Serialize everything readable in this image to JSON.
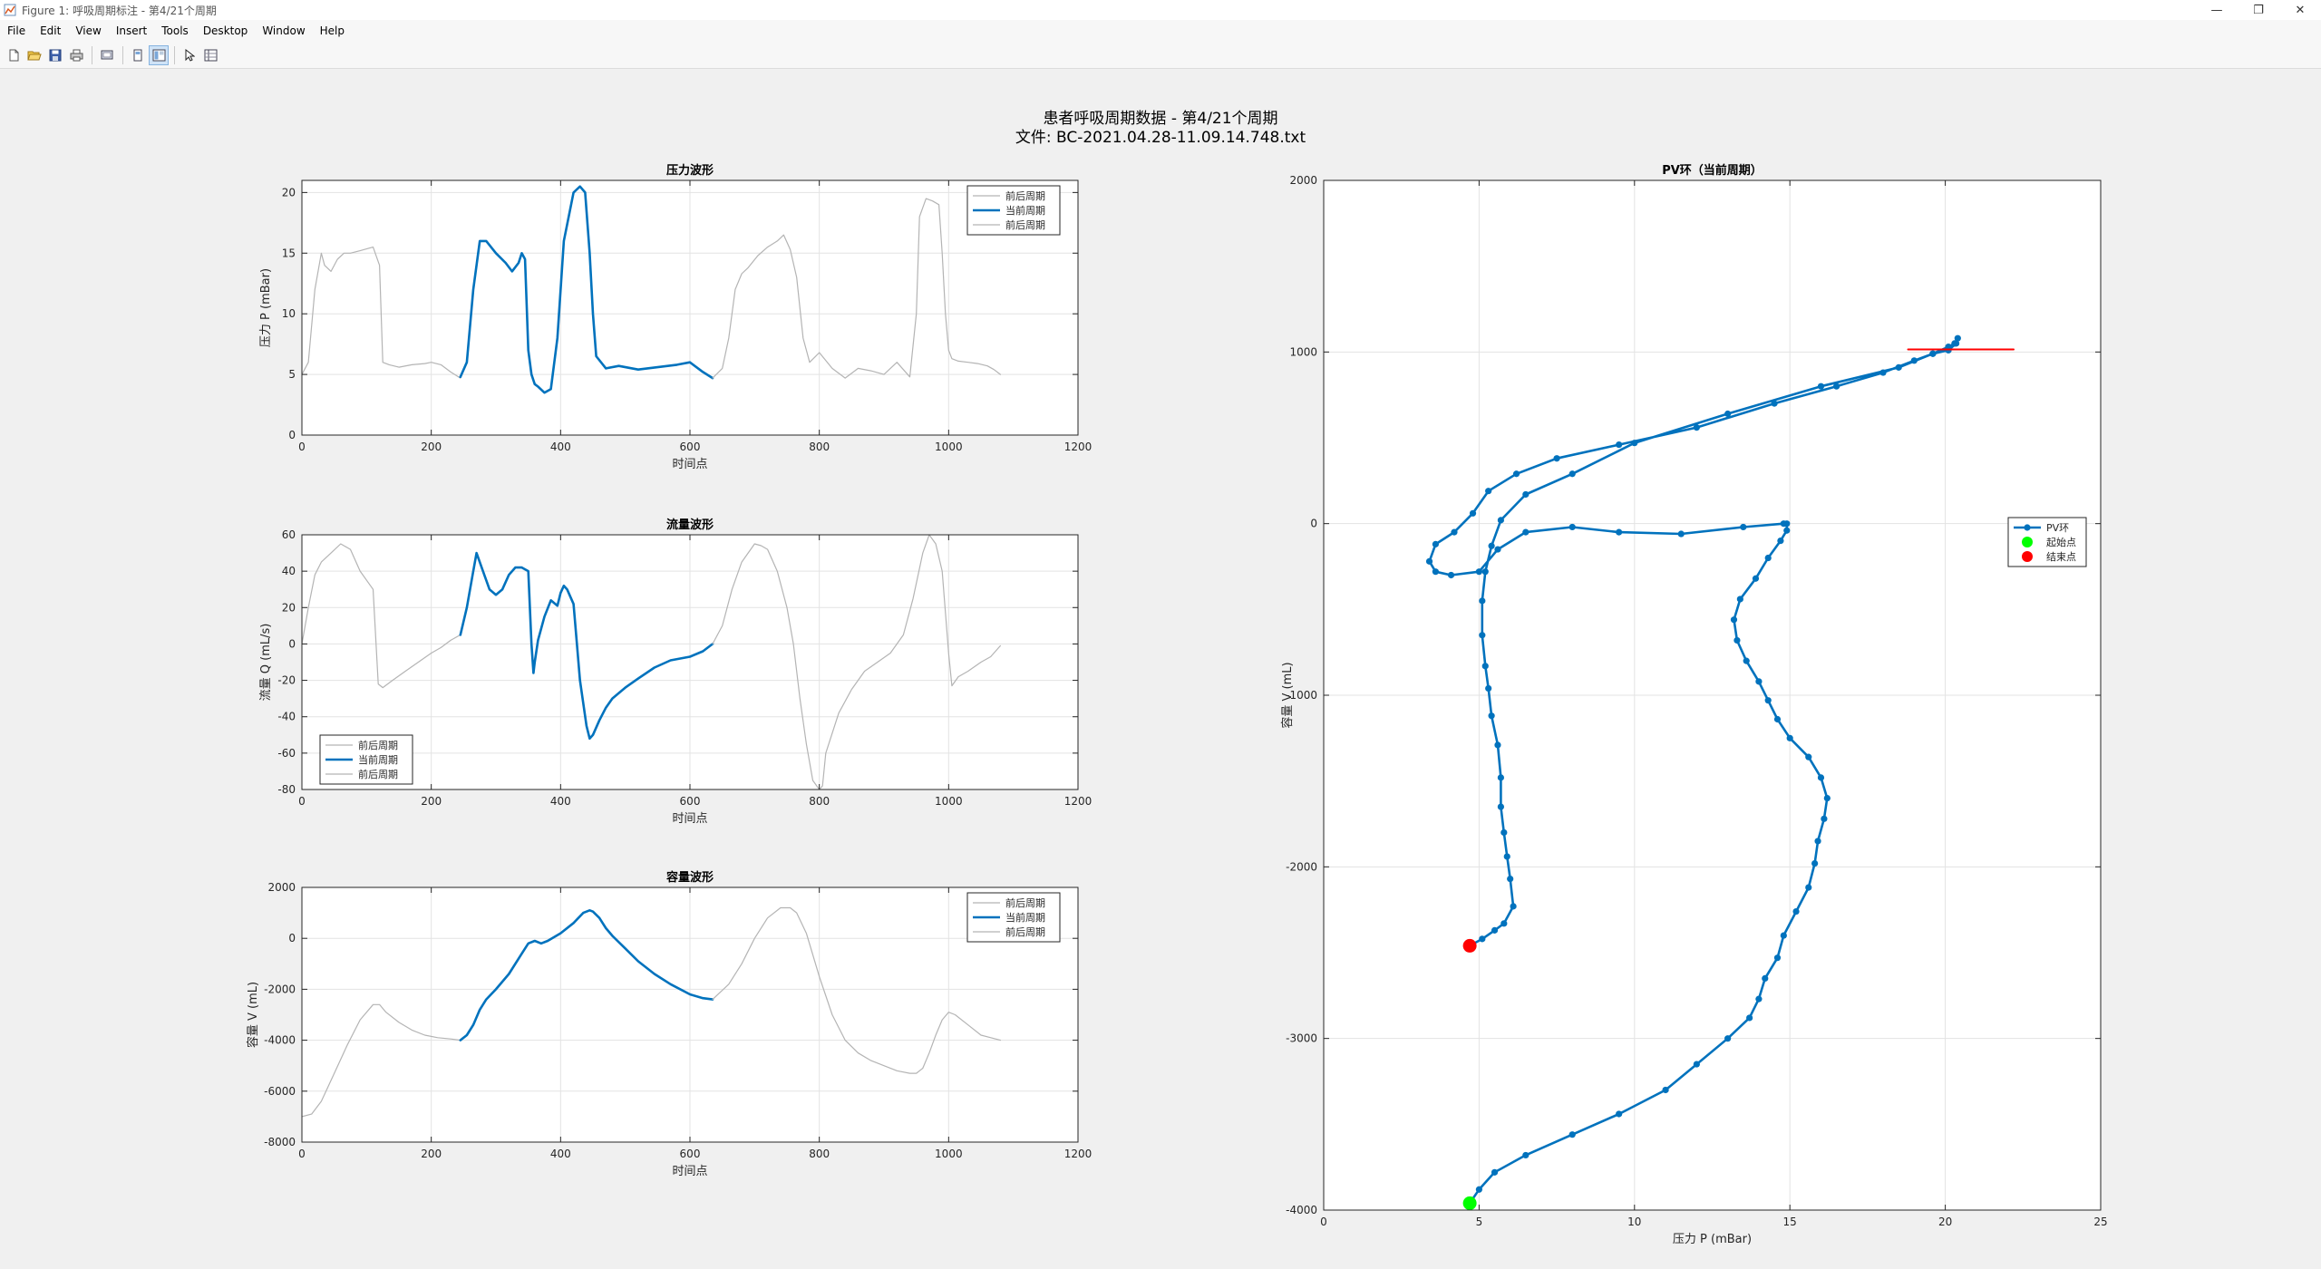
{
  "window": {
    "title": "Figure 1: 呼吸周期标注 - 第4/21个周期",
    "controls": [
      "—",
      "❐",
      "✕"
    ]
  },
  "menubar": [
    "File",
    "Edit",
    "View",
    "Insert",
    "Tools",
    "Desktop",
    "Window",
    "Help"
  ],
  "toolbar": [
    "new-figure-icon",
    "open-file-icon",
    "save-icon",
    "print-icon",
    "print-preview-icon",
    "hide-plot-tools-icon",
    "show-plot-tools-icon",
    "edit-plot-arrow-icon",
    "property-inspector-icon"
  ],
  "figure": {
    "title_line1": "患者呼吸周期数据 - 第4/21个周期",
    "title_line2": "文件: BC-2021.04.28-11.09.14.748.txt"
  },
  "colors": {
    "context": "#b4b4b4",
    "current": "#0072bd",
    "start": "#00ff00",
    "end": "#ff0000",
    "marker_line": "#ff0000"
  },
  "chart_data": [
    {
      "id": "pressure",
      "type": "line",
      "title": "压力波形",
      "xlabel": "时间点",
      "ylabel": "压力 P (mBar)",
      "xlim": [
        0,
        1200
      ],
      "ylim": [
        0,
        21
      ],
      "xticks": [
        0,
        200,
        400,
        600,
        800,
        1000,
        1200
      ],
      "yticks": [
        0,
        5,
        10,
        15,
        20
      ],
      "grid": true,
      "legend_location": "top-right",
      "series": [
        {
          "name": "前后周期",
          "role": "context",
          "x": [
            0,
            10,
            20,
            30,
            35,
            45,
            55,
            65,
            75,
            90,
            110,
            120,
            125,
            135,
            150,
            170,
            190,
            200,
            215,
            230,
            245
          ],
          "y": [
            5,
            6,
            12,
            15,
            14,
            13.5,
            14.5,
            15,
            15,
            15.2,
            15.5,
            14,
            6,
            5.8,
            5.6,
            5.8,
            5.9,
            6,
            5.8,
            5.2,
            4.7
          ]
        },
        {
          "name": "当前周期",
          "role": "current",
          "x": [
            245,
            255,
            265,
            275,
            285,
            300,
            315,
            325,
            335,
            340,
            345,
            350,
            355,
            360,
            365,
            375,
            385,
            395,
            405,
            420,
            430,
            438,
            445,
            450,
            455,
            470,
            490,
            520,
            550,
            580,
            600,
            620,
            635
          ],
          "y": [
            4.8,
            6,
            12,
            16,
            16,
            15,
            14.2,
            13.5,
            14.2,
            15,
            14.5,
            7,
            5,
            4.2,
            4,
            3.5,
            3.8,
            8,
            16,
            20,
            20.5,
            20,
            15,
            10,
            6.5,
            5.5,
            5.7,
            5.4,
            5.6,
            5.8,
            6,
            5.2,
            4.7
          ]
        },
        {
          "name": "前后周期",
          "role": "context",
          "x": [
            635,
            650,
            660,
            670,
            680,
            690,
            705,
            720,
            735,
            745,
            755,
            765,
            775,
            785,
            800,
            820,
            840,
            860,
            880,
            900,
            920,
            940,
            950,
            955,
            965,
            975,
            985,
            990,
            995,
            1000,
            1005,
            1015,
            1030,
            1045,
            1060,
            1070,
            1080
          ],
          "y": [
            4.7,
            5.5,
            8,
            12,
            13.3,
            13.8,
            14.8,
            15.5,
            16,
            16.5,
            15.3,
            13,
            8,
            6,
            6.8,
            5.5,
            4.7,
            5.5,
            5.3,
            5,
            6,
            4.8,
            10,
            18,
            19.5,
            19.3,
            19,
            15,
            10,
            7,
            6.3,
            6.1,
            6,
            5.9,
            5.7,
            5.4,
            5
          ]
        }
      ]
    },
    {
      "id": "flow",
      "type": "line",
      "title": "流量波形",
      "xlabel": "时间点",
      "ylabel": "流量 Q (mL/s)",
      "xlim": [
        0,
        1200
      ],
      "ylim": [
        -80,
        60
      ],
      "xticks": [
        0,
        200,
        400,
        600,
        800,
        1000,
        1200
      ],
      "yticks": [
        -80,
        -60,
        -40,
        -20,
        0,
        20,
        40,
        60
      ],
      "grid": true,
      "legend_location": "bottom-left",
      "series": [
        {
          "name": "前后周期",
          "role": "context",
          "x": [
            0,
            10,
            20,
            30,
            45,
            60,
            75,
            90,
            110,
            118,
            125,
            140,
            160,
            180,
            200,
            215,
            230,
            245
          ],
          "y": [
            0,
            20,
            38,
            45,
            50,
            55,
            52,
            40,
            30,
            -22,
            -24,
            -20,
            -15,
            -10,
            -5,
            -2,
            2,
            5
          ]
        },
        {
          "name": "当前周期",
          "role": "current",
          "x": [
            245,
            255,
            265,
            270,
            280,
            290,
            300,
            310,
            320,
            330,
            340,
            350,
            355,
            358,
            360,
            365,
            375,
            385,
            395,
            400,
            405,
            410,
            420,
            430,
            440,
            445,
            450,
            460,
            470,
            480,
            500,
            520,
            545,
            570,
            600,
            620,
            635
          ],
          "y": [
            5,
            20,
            40,
            50,
            40,
            30,
            27,
            30,
            38,
            42,
            42,
            40,
            0,
            -16,
            -10,
            2,
            15,
            24,
            21,
            28,
            32,
            30,
            22,
            -20,
            -45,
            -52,
            -50,
            -42,
            -35,
            -30,
            -24,
            -19,
            -13,
            -9,
            -7,
            -4,
            0
          ]
        },
        {
          "name": "前后周期",
          "role": "context",
          "x": [
            635,
            650,
            665,
            680,
            700,
            710,
            720,
            735,
            750,
            760,
            770,
            780,
            790,
            800,
            805,
            810,
            830,
            850,
            870,
            890,
            910,
            930,
            945,
            960,
            970,
            980,
            990,
            1000,
            1005,
            1015,
            1030,
            1050,
            1065,
            1080
          ],
          "y": [
            0,
            10,
            30,
            45,
            55,
            54,
            52,
            40,
            20,
            0,
            -30,
            -55,
            -75,
            -80,
            -78,
            -60,
            -38,
            -25,
            -15,
            -10,
            -5,
            5,
            25,
            50,
            60,
            55,
            40,
            -5,
            -23,
            -18,
            -15,
            -10,
            -7,
            -1
          ]
        }
      ]
    },
    {
      "id": "volume",
      "type": "line",
      "title": "容量波形",
      "xlabel": "时间点",
      "ylabel": "容量 V (mL)",
      "xlim": [
        0,
        1200
      ],
      "ylim": [
        -8000,
        2000
      ],
      "xticks": [
        0,
        200,
        400,
        600,
        800,
        1000,
        1200
      ],
      "yticks": [
        -8000,
        -6000,
        -4000,
        -2000,
        0,
        2000
      ],
      "grid": true,
      "legend_location": "top-right",
      "series": [
        {
          "name": "前后周期",
          "role": "context",
          "x": [
            0,
            15,
            30,
            50,
            70,
            90,
            110,
            120,
            130,
            150,
            170,
            190,
            210,
            230,
            245
          ],
          "y": [
            -7000,
            -6900,
            -6400,
            -5300,
            -4200,
            -3200,
            -2600,
            -2600,
            -2900,
            -3300,
            -3600,
            -3800,
            -3900,
            -3950,
            -4000
          ]
        },
        {
          "name": "当前周期",
          "role": "current",
          "x": [
            245,
            255,
            265,
            275,
            285,
            300,
            320,
            340,
            350,
            360,
            370,
            380,
            400,
            420,
            435,
            445,
            450,
            460,
            470,
            480,
            500,
            520,
            545,
            570,
            600,
            620,
            635
          ],
          "y": [
            -4000,
            -3800,
            -3400,
            -2800,
            -2400,
            -2000,
            -1400,
            -600,
            -200,
            -100,
            -200,
            -100,
            200,
            600,
            1000,
            1100,
            1050,
            800,
            400,
            100,
            -400,
            -900,
            -1400,
            -1800,
            -2200,
            -2350,
            -2400
          ]
        },
        {
          "name": "前后周期",
          "role": "context",
          "x": [
            635,
            660,
            680,
            700,
            720,
            740,
            755,
            765,
            780,
            800,
            820,
            840,
            860,
            880,
            900,
            920,
            940,
            950,
            960,
            970,
            980,
            990,
            1000,
            1010,
            1030,
            1050,
            1080
          ],
          "y": [
            -2400,
            -1800,
            -1000,
            0,
            800,
            1200,
            1200,
            1000,
            200,
            -1500,
            -3000,
            -4000,
            -4500,
            -4800,
            -5000,
            -5200,
            -5300,
            -5300,
            -5100,
            -4500,
            -3800,
            -3200,
            -2900,
            -3000,
            -3400,
            -3800,
            -4000
          ]
        }
      ]
    },
    {
      "id": "pv-loop",
      "type": "line",
      "title": "PV环（当前周期）",
      "xlabel": "压力 P (mBar)",
      "ylabel": "容量 V (mL)",
      "xlim": [
        0,
        25
      ],
      "ylim": [
        -4000,
        2000
      ],
      "xticks": [
        0,
        5,
        10,
        15,
        20,
        25
      ],
      "yticks": [
        -4000,
        -3000,
        -2000,
        -1000,
        0,
        1000,
        2000
      ],
      "grid": true,
      "legend_location": "right",
      "series": [
        {
          "name": "PV环",
          "role": "current",
          "markers": true,
          "x": [
            4.7,
            5,
            5.5,
            6.5,
            8,
            9.5,
            11,
            12,
            13,
            13.7,
            14,
            14.2,
            14.6,
            14.8,
            15.2,
            15.6,
            15.8,
            15.9,
            16.1,
            16.2,
            16.0,
            15.6,
            15.0,
            14.6,
            14.3,
            14.0,
            13.6,
            13.3,
            13.2,
            13.4,
            13.9,
            14.3,
            14.7,
            14.9,
            14.9,
            14.8,
            13.5,
            11.5,
            9.5,
            8,
            6.5,
            5.6,
            5.0,
            4.1,
            3.6,
            3.4,
            3.6,
            4.2,
            4.8,
            5.3,
            6.2,
            7.5,
            9.5,
            12,
            14.5,
            16.5,
            18,
            19,
            19.6,
            20.1,
            20.3,
            20.4,
            20.35,
            20.1,
            19.6,
            18.5,
            16,
            13,
            10,
            8,
            6.5,
            5.7,
            5.4,
            5.2,
            5.1,
            5.1,
            5.2,
            5.3,
            5.4,
            5.6,
            5.7,
            5.7,
            5.8,
            5.9,
            6.0,
            6.1,
            5.8,
            5.5,
            5.1,
            4.7
          ],
          "y": [
            -3960,
            -3880,
            -3780,
            -3680,
            -3560,
            -3440,
            -3300,
            -3150,
            -3000,
            -2880,
            -2770,
            -2650,
            -2530,
            -2400,
            -2260,
            -2120,
            -1980,
            -1850,
            -1720,
            -1600,
            -1480,
            -1360,
            -1250,
            -1140,
            -1030,
            -920,
            -800,
            -680,
            -560,
            -440,
            -320,
            -200,
            -100,
            -40,
            0,
            0,
            -20,
            -60,
            -50,
            -20,
            -50,
            -150,
            -280,
            -300,
            -280,
            -220,
            -120,
            -50,
            60,
            190,
            290,
            380,
            460,
            560,
            700,
            800,
            880,
            950,
            990,
            1030,
            1050,
            1080,
            1050,
            1010,
            990,
            910,
            800,
            640,
            470,
            290,
            170,
            20,
            -130,
            -280,
            -450,
            -650,
            -830,
            -960,
            -1120,
            -1290,
            -1480,
            -1650,
            -1800,
            -1940,
            -2070,
            -2230,
            -2330,
            -2370,
            -2420,
            -2460
          ]
        },
        {
          "name": "起始点",
          "role": "start",
          "x": [
            4.7
          ],
          "y": [
            -3960
          ]
        },
        {
          "name": "结束点",
          "role": "end",
          "x": [
            4.7
          ],
          "y": [
            -2460
          ]
        },
        {
          "name": "",
          "role": "marker-line",
          "x": [
            18.8,
            22.2
          ],
          "y": [
            1015,
            1015
          ]
        }
      ]
    }
  ]
}
